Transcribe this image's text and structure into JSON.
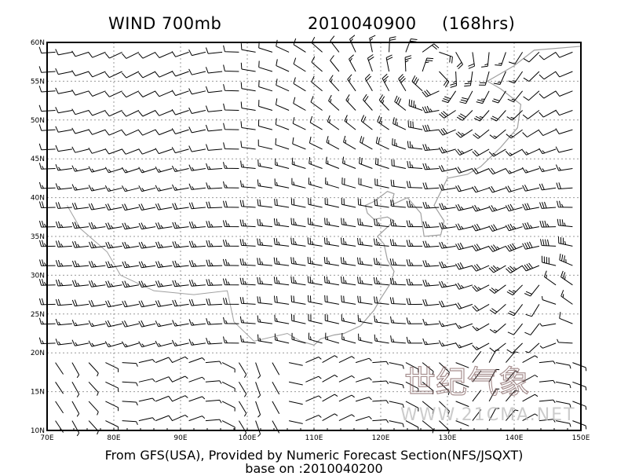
{
  "header": {
    "variable": "WIND 700mb",
    "datetime": "2010040900",
    "lead": "(168hrs)"
  },
  "map": {
    "lon_range": [
      70,
      150
    ],
    "lat_range": [
      10,
      60
    ],
    "lon_labels": [
      "70E",
      "80E",
      "90E",
      "100E",
      "110E",
      "120E",
      "130E",
      "140E",
      "150E"
    ],
    "lat_labels": [
      "10N",
      "15N",
      "20N",
      "25N",
      "30N",
      "35N",
      "40N",
      "45N",
      "50N",
      "55N",
      "60N"
    ],
    "grid": "dashed",
    "barb_color": "#000000",
    "coastline_color": "#a0a0a0"
  },
  "footer": {
    "source": "From GFS(USA), Provided by Numeric Forecast Section(NFS/JSQXT)",
    "base": "base on :2010040200"
  },
  "watermark": {
    "cn": "世纪气象",
    "url": "WWW.21CMA.NET",
    "color": "#8a6a6a"
  }
}
